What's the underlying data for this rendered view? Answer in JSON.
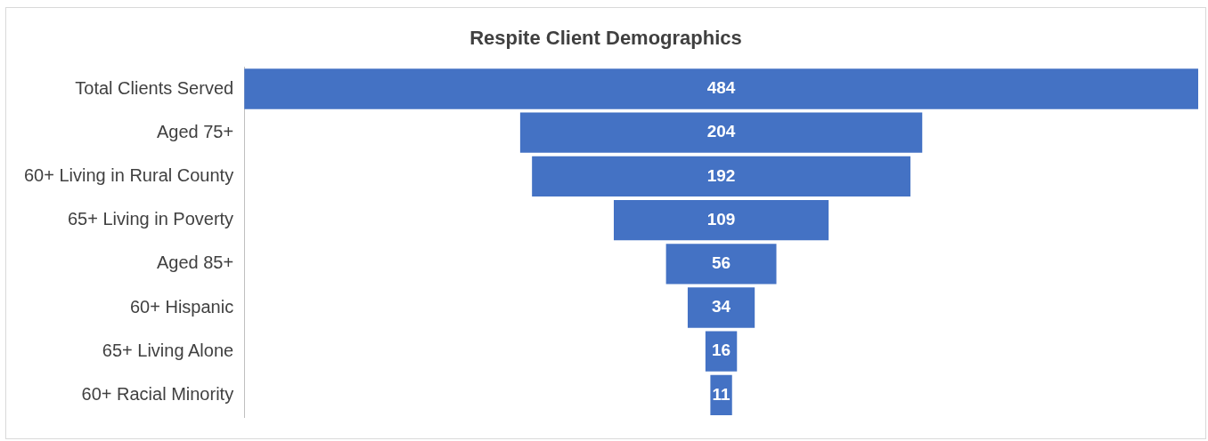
{
  "chart_data": {
    "type": "other",
    "title": "Respite Client Demographics",
    "categories": [
      "Total Clients Served",
      "Aged 75+",
      "60+ Living in Rural County",
      "65+ Living in Poverty",
      "Aged 85+",
      "60+ Hispanic",
      "65+ Living Alone",
      "60+ Racial Minority"
    ],
    "values": [
      484,
      204,
      192,
      109,
      56,
      34,
      16,
      11
    ],
    "color": "#4472c4",
    "data_labels": true
  }
}
